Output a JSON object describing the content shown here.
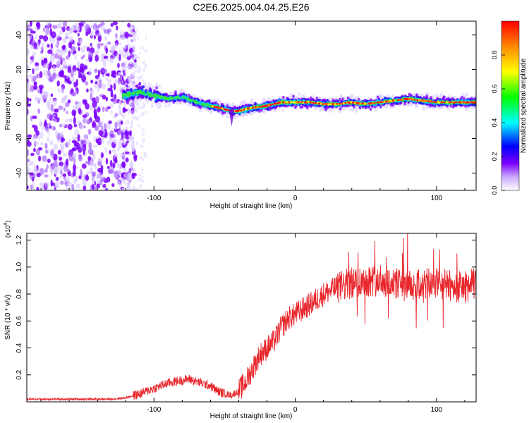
{
  "title": "C2E6.2025.004.04.25.E26",
  "chart_data": [
    {
      "type": "heatmap",
      "xlabel": "Height of straight line (km)",
      "ylabel": "Frequency (Hz)",
      "xlim": [
        -190,
        128
      ],
      "ylim": [
        -50,
        48
      ],
      "xticks": [
        -100,
        0,
        100
      ],
      "xtick_labels": [
        "-100",
        "0",
        "100"
      ],
      "yticks": [
        -40,
        -20,
        0,
        20,
        40
      ],
      "ytick_labels": [
        "-40",
        "-20",
        "0",
        "20",
        "40"
      ],
      "grid": false,
      "noise_region_x": [
        -190,
        -113
      ],
      "ridge": {
        "x": [
          -122,
          -115,
          -110,
          -100,
          -90,
          -80,
          -70,
          -60,
          -50,
          -45,
          -40,
          -35,
          -30,
          -20,
          -10,
          0,
          10,
          20,
          30,
          40,
          50,
          60,
          70,
          80,
          90,
          100,
          110,
          120,
          128
        ],
        "frequency": [
          5,
          6,
          7,
          5,
          3,
          4,
          1,
          -1,
          -3,
          -4,
          -4,
          -3,
          -2,
          -1,
          1,
          1,
          1,
          0,
          0,
          1,
          0,
          1,
          2,
          3,
          2,
          1,
          1,
          1,
          1
        ]
      },
      "colorbar": {
        "label": "Normalized spectral amplitude",
        "range": [
          0,
          1
        ],
        "ticks": [
          0,
          0.2,
          0.4,
          0.6,
          0.8
        ],
        "tick_labels": [
          "0.0",
          "0.2",
          "0.4",
          "0.6",
          "0.8"
        ],
        "colormap": [
          "#ffffff",
          "#7b00ff",
          "#0000ff",
          "#00ffff",
          "#00ff00",
          "#ffff00",
          "#ff8800",
          "#ff0000"
        ]
      }
    },
    {
      "type": "line",
      "xlabel": "Height of straight line (km)",
      "ylabel": "SNR (10 * v/v)",
      "y_multiplier": "(x10",
      "y_multiplier_exp": "4",
      "y_multiplier_close": ")",
      "xlim": [
        -190,
        128
      ],
      "ylim": [
        0,
        1.25
      ],
      "xticks": [
        -100,
        0,
        100
      ],
      "xtick_labels": [
        "-100",
        "0",
        "100"
      ],
      "yticks": [
        0.2,
        0.4,
        0.6,
        0.8,
        1.0,
        1.2
      ],
      "ytick_labels": [
        "0.2",
        "0.4",
        "0.6",
        "0.8",
        "1.0",
        "1.2"
      ],
      "grid": false,
      "series": [
        {
          "color": "#e8262b",
          "x": [
            -190,
            -170,
            -150,
            -130,
            -120,
            -110,
            -100,
            -90,
            -80,
            -75,
            -70,
            -60,
            -55,
            -50,
            -45,
            -40,
            -35,
            -30,
            -25,
            -20,
            -15,
            -10,
            -5,
            0,
            10,
            20,
            30,
            40,
            50,
            60,
            70,
            80,
            90,
            100,
            110,
            120,
            128
          ],
          "values": [
            0.02,
            0.02,
            0.02,
            0.02,
            0.03,
            0.06,
            0.1,
            0.14,
            0.16,
            0.17,
            0.15,
            0.12,
            0.08,
            0.06,
            0.05,
            0.08,
            0.15,
            0.25,
            0.35,
            0.4,
            0.45,
            0.55,
            0.62,
            0.65,
            0.72,
            0.8,
            0.85,
            0.88,
            0.9,
            0.9,
            0.88,
            0.85,
            0.87,
            0.88,
            0.86,
            0.85,
            0.88
          ]
        }
      ]
    }
  ]
}
